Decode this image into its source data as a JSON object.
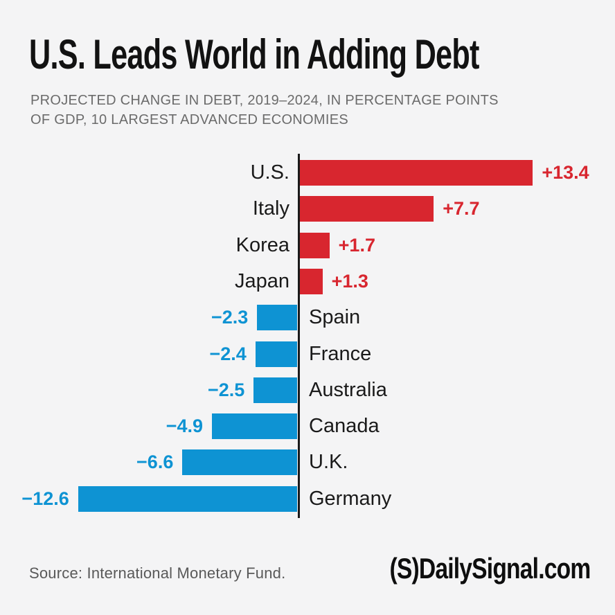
{
  "header": {
    "title": "U.S. Leads World in Adding Debt",
    "subtitle": "PROJECTED CHANGE IN DEBT, 2019–2024, IN PERCENTAGE POINTS\nOF GDP, 10 LARGEST ADVANCED ECONOMIES"
  },
  "chart_data": {
    "type": "bar",
    "orientation": "horizontal-diverging",
    "title": "U.S. Leads World in Adding Debt",
    "subtitle": "PROJECTED CHANGE IN DEBT, 2019–2024, IN PERCENTAGE POINTS OF GDP, 10 LARGEST ADVANCED ECONOMIES",
    "categories": [
      "U.S.",
      "Italy",
      "Korea",
      "Japan",
      "Spain",
      "France",
      "Australia",
      "Canada",
      "U.K.",
      "Germany"
    ],
    "values": [
      13.4,
      7.7,
      1.7,
      1.3,
      -2.3,
      -2.4,
      -2.5,
      -4.9,
      -6.6,
      -12.6
    ],
    "value_labels": [
      "+13.4",
      "+7.7",
      "+1.7",
      "+1.3",
      "−2.3",
      "−2.4",
      "−2.5",
      "−4.9",
      "−6.6",
      "−12.6"
    ],
    "xlim": [
      -12.6,
      13.4
    ],
    "grid": false,
    "legend": false,
    "positive_color": "#D8262F",
    "negative_color": "#0E93D3",
    "axis_color": "#1A1A1A"
  },
  "footer": {
    "source": "Source: International Monetary Fund.",
    "brand": "(S)DailySignal.com"
  }
}
